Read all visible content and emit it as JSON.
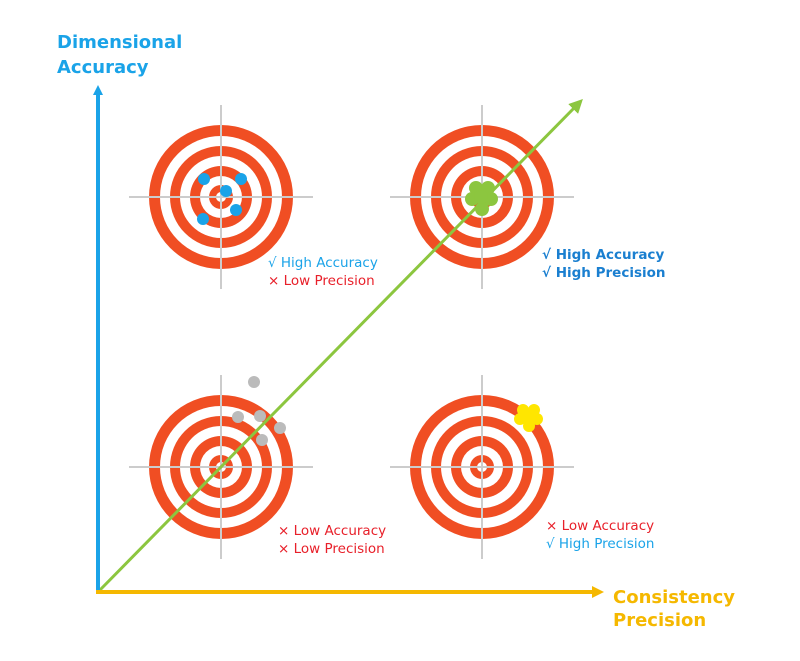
{
  "axes": {
    "y_label": [
      "Dimensional",
      "Accuracy"
    ],
    "x_label": [
      "Consistency",
      "Precision"
    ]
  },
  "quadrants": [
    {
      "lines": [
        "√ High Accuracy",
        "× Low Precision"
      ]
    },
    {
      "lines": [
        "√ High Accuracy",
        "√ High Precision"
      ]
    },
    {
      "lines": [
        "× Low Accuracy",
        "× Low Precision"
      ]
    },
    {
      "lines": [
        "× Low Accuracy",
        "√ High Precision"
      ]
    }
  ]
}
